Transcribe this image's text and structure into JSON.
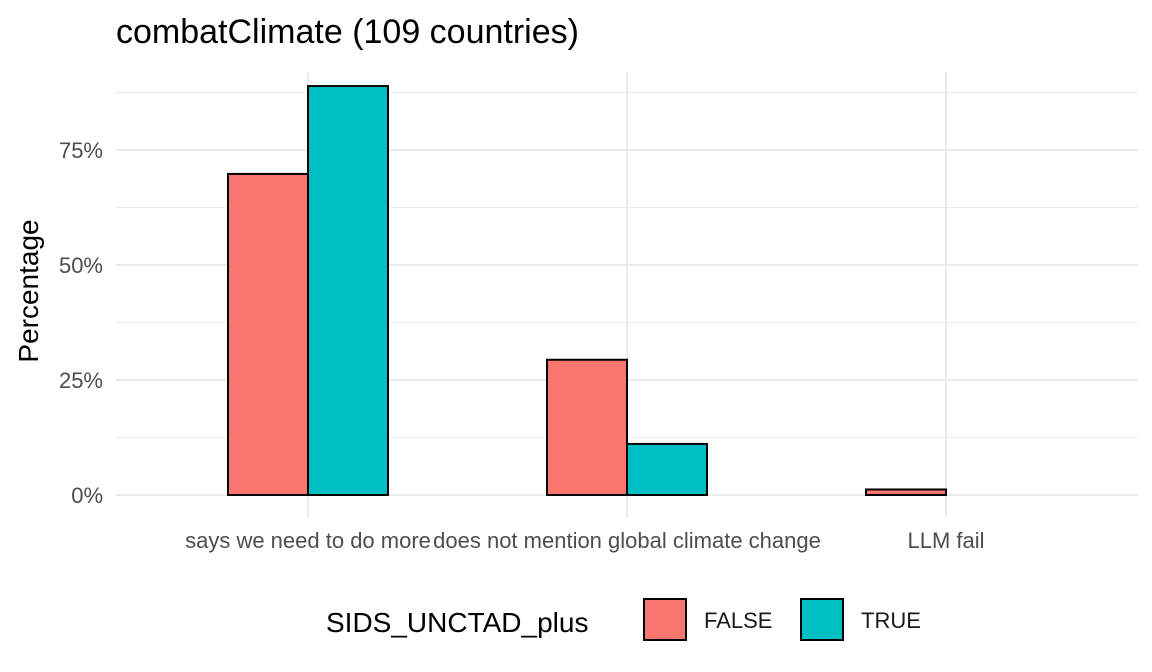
{
  "chart_data": {
    "type": "bar",
    "title": "combatClimate (109 countries)",
    "xlabel": "",
    "ylabel": "Percentage",
    "categories": [
      "says we need to do more",
      "does not mention global climate change",
      "LLM fail"
    ],
    "series": [
      {
        "name": "FALSE",
        "color": "#F8766D",
        "values": [
          69.8,
          29.4,
          1.2
        ]
      },
      {
        "name": "TRUE",
        "color": "#00BFC4",
        "values": [
          88.9,
          11.1,
          0.0
        ]
      }
    ],
    "yticks": [
      "0%",
      "25%",
      "50%",
      "75%"
    ],
    "ytick_values": [
      0,
      25,
      50,
      75
    ],
    "ylim": [
      -5,
      92
    ],
    "grid": true,
    "legend": {
      "title": "SIDS_UNCTAD_plus",
      "position": "bottom"
    }
  }
}
